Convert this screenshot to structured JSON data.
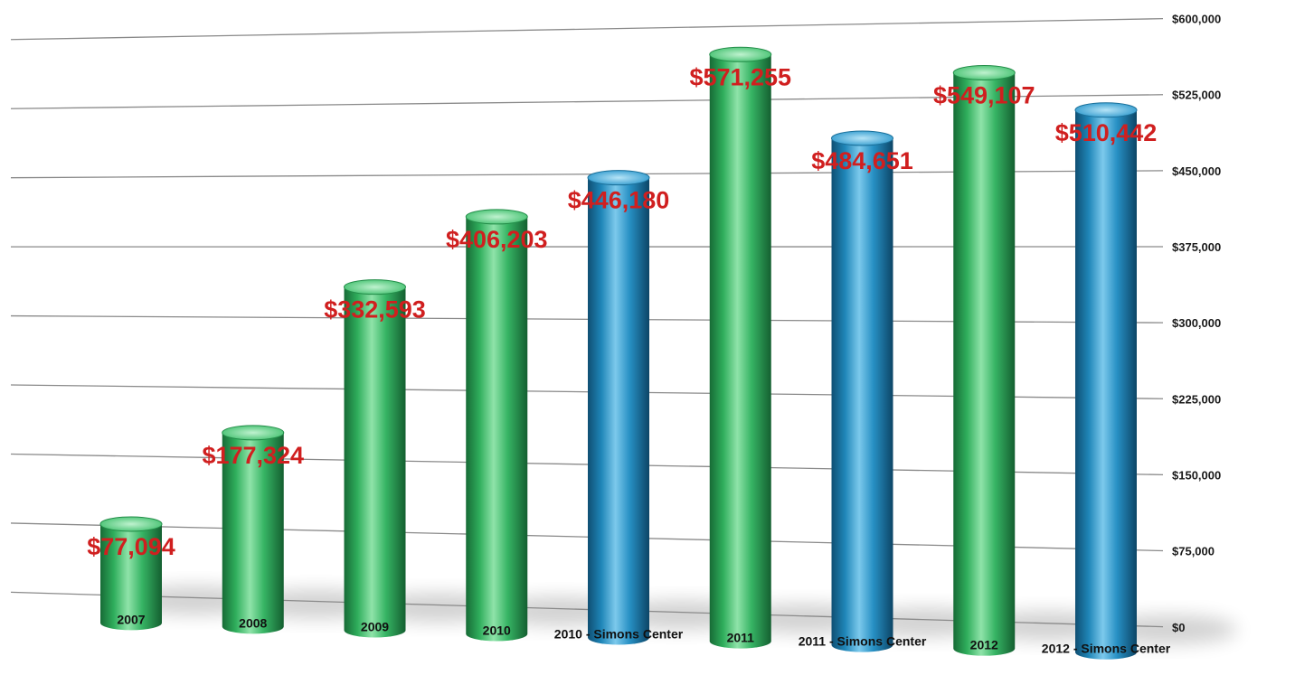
{
  "chart_data": {
    "type": "bar",
    "title": "",
    "xlabel": "",
    "ylabel": "",
    "ylim": [
      0,
      600000
    ],
    "y_ticks": [
      0,
      75000,
      150000,
      225000,
      300000,
      375000,
      450000,
      525000,
      600000
    ],
    "y_tick_labels": [
      "$0",
      "$75,000",
      "$150,000",
      "$225,000",
      "$300,000",
      "$375,000",
      "$450,000",
      "$525,000",
      "$600,000"
    ],
    "y_axis_side": "right",
    "grid": true,
    "legend": "none",
    "categories": [
      "2007",
      "2008",
      "2009",
      "2010",
      "2010 - Simons Center",
      "2011",
      "2011 - Simons Center",
      "2012",
      "2012 - Simons Center"
    ],
    "values": [
      77094,
      177324,
      332593,
      406203,
      446180,
      571255,
      484651,
      549107,
      510442
    ],
    "data_labels": [
      "$77,094",
      "$177,324",
      "$332,593",
      "$406,203",
      "$446,180",
      "$571,255",
      "$484,651",
      "$549,107",
      "$510,442"
    ],
    "bar_colors": [
      "green",
      "green",
      "green",
      "green",
      "blue",
      "green",
      "blue",
      "green",
      "blue"
    ],
    "colors": {
      "green": "#2fae5c",
      "blue": "#1f86b8",
      "label": "#d01f1f",
      "grid": "#8a8a8a"
    }
  }
}
